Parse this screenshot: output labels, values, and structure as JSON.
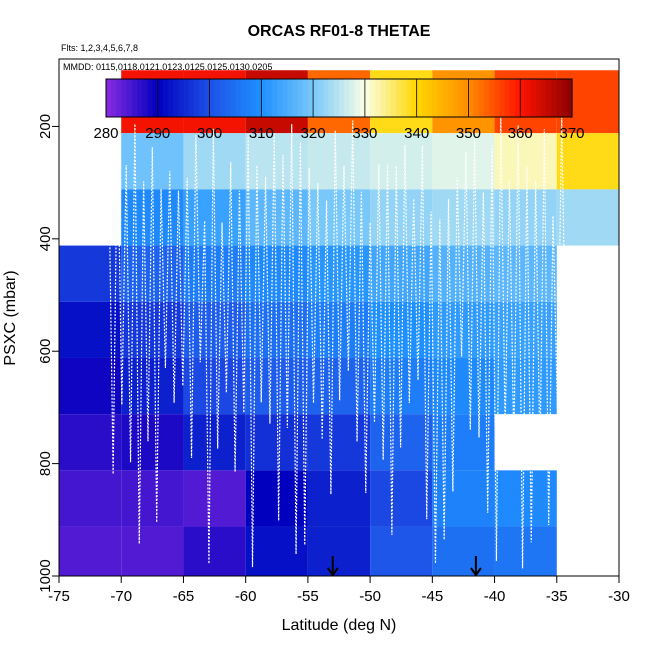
{
  "chart_data": {
    "type": "heatmap",
    "title": "ORCAS RF01-8 THETAE",
    "subtitle_flights": "Flts: 1,2,3,4,5,6,7,8",
    "subtitle_dates": "MMDD: 0115,0118,0121,0123,0125,0125,0130,0205",
    "xlabel": "Latitude (deg N)",
    "ylabel": "PSXC (mbar)",
    "xlim": [
      -75,
      -30
    ],
    "ylim": [
      1000,
      80
    ],
    "x_ticks": [
      -75,
      -70,
      -65,
      -60,
      -55,
      -50,
      -45,
      -40,
      -35,
      -30
    ],
    "x_tick_labels": [
      "-75",
      "-70",
      "-65",
      "-60",
      "-55",
      "-50",
      "-45",
      "-40",
      "-35",
      "-30"
    ],
    "y_ticks": [
      200,
      400,
      600,
      800,
      1000
    ],
    "y_tick_labels": [
      "200",
      "400",
      "600",
      "800",
      "1000"
    ],
    "colorbar": {
      "min": 280,
      "max": 370,
      "ticks": [
        280,
        290,
        300,
        310,
        320,
        330,
        340,
        350,
        360,
        370
      ],
      "tick_labels": [
        "280",
        "290",
        "300",
        "310",
        "320",
        "330",
        "340",
        "350",
        "360",
        "370"
      ]
    },
    "bin_edges_x": [
      -75,
      -70,
      -65,
      -60,
      -55,
      -50,
      -45,
      -40,
      -35,
      -30
    ],
    "bin_edges_y": [
      100,
      212,
      312,
      412,
      512,
      612,
      712,
      812,
      912,
      1012
    ],
    "cells": [
      [
        null,
        361,
        361,
        365,
        353,
        339,
        349,
        356,
        356
      ],
      [
        null,
        319,
        323,
        325,
        326,
        327,
        328,
        332,
        339
      ],
      [
        null,
        309,
        313,
        317,
        320,
        322,
        323,
        322,
        323
      ],
      [
        297,
        303,
        307,
        309,
        311,
        314,
        316,
        317,
        null
      ],
      [
        292,
        297,
        302,
        305,
        307,
        310,
        312,
        313,
        null
      ],
      [
        289,
        294,
        299,
        302,
        303,
        307,
        309,
        312,
        null
      ],
      [
        287,
        288,
        294,
        296,
        297,
        303,
        307,
        null,
        null
      ],
      [
        285,
        285,
        284,
        290,
        294,
        299,
        308,
        309,
        null
      ],
      [
        284,
        284,
        287,
        292,
        294,
        301,
        305,
        306,
        null
      ]
    ],
    "arrows_lat": [
      -53,
      -41.5
    ]
  }
}
